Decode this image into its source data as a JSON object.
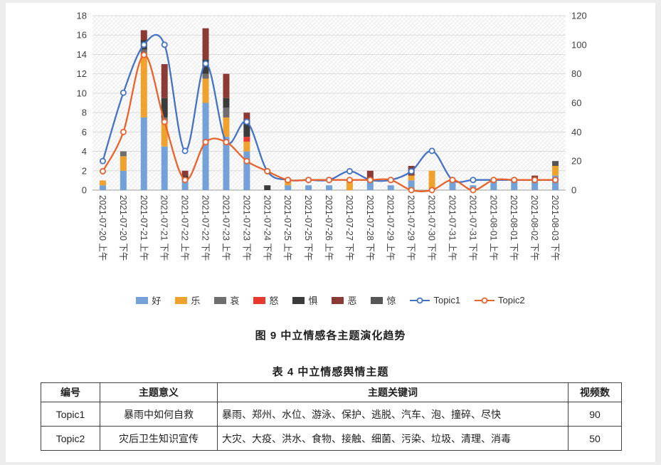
{
  "figure_caption": "图 9  中立情感各主题演化趋势",
  "table_caption": "表 4  中立情感舆情主题",
  "chart_data": {
    "type": "combo-stacked-bar-line",
    "title": "中立情感各主题演化趋势",
    "categories": [
      "2021-07-20 上午",
      "2021-07-20 下午",
      "2021-07-21 上午",
      "2021-07-21 下午",
      "2021-07-22 上午",
      "2021-07-22 下午",
      "2021-07-23 上午",
      "2021-07-23 下午",
      "2021-07-24 下午",
      "2021-07-25 上午",
      "2021-07-25 下午",
      "2021-07-26 上午",
      "2021-07-27 下午",
      "2021-07-28 下午",
      "2021-07-29 上午",
      "2021-07-29 下午",
      "2021-07-30 下午",
      "2021-07-31 上午",
      "2021-07-31 下午",
      "2021-08-01 上午",
      "2021-08-01 下午",
      "2021-08-02 下午",
      "2021-08-03 下午"
    ],
    "bar_series": [
      {
        "name": "好",
        "color": "#74A2D8",
        "values": [
          0.5,
          2,
          7.5,
          4.5,
          1,
          9,
          5.5,
          4,
          0,
          0.5,
          0.5,
          0.5,
          0,
          1,
          0.5,
          1,
          0,
          1,
          0.5,
          1,
          1,
          1,
          1.5
        ]
      },
      {
        "name": "乐",
        "color": "#F0A22E",
        "values": [
          0.5,
          1.5,
          6.5,
          2.5,
          0,
          2.5,
          2,
          1,
          0,
          0.5,
          0,
          0,
          1,
          0,
          0,
          0.5,
          2,
          0,
          0,
          0,
          0,
          0,
          1
        ]
      },
      {
        "name": "哀",
        "color": "#6E6E6E",
        "values": [
          0,
          0.5,
          0.5,
          0.5,
          0,
          0.5,
          1,
          0,
          0,
          0,
          0,
          0,
          0,
          0,
          0,
          0,
          0,
          0,
          0,
          0,
          0,
          0,
          0
        ]
      },
      {
        "name": "怒",
        "color": "#E8392E",
        "values": [
          0,
          0,
          0,
          0,
          0,
          0,
          0,
          0.5,
          0,
          0,
          0,
          0,
          0,
          0,
          0,
          0,
          0,
          0,
          0,
          0,
          0,
          0,
          0
        ]
      },
      {
        "name": "惧",
        "color": "#3B3B3B",
        "values": [
          0,
          0,
          1,
          2,
          0.5,
          1.5,
          1,
          1.5,
          0.5,
          0,
          0,
          0,
          0,
          0,
          0,
          0,
          0,
          0,
          0,
          0,
          0,
          0,
          0
        ]
      },
      {
        "name": "恶",
        "color": "#8C3A35",
        "values": [
          0,
          0,
          1,
          3.5,
          0.5,
          3.2,
          2.5,
          1,
          0,
          0,
          0,
          0,
          0,
          1,
          0,
          1,
          0,
          0,
          0,
          0,
          0,
          0.5,
          0
        ]
      },
      {
        "name": "惊",
        "color": "#565656",
        "values": [
          0,
          0,
          0,
          0,
          0,
          0,
          0,
          0,
          0,
          0,
          0,
          0,
          0,
          0,
          0,
          0,
          0,
          0,
          0,
          0,
          0,
          0,
          0.5
        ]
      }
    ],
    "line_series": [
      {
        "name": "Topic1",
        "color": "#4472C4",
        "axis": "right",
        "values": [
          20,
          67,
          100,
          100,
          27,
          87,
          33,
          47,
          13,
          7,
          7,
          7,
          13,
          7,
          7,
          13,
          27,
          7,
          7,
          7,
          7,
          7,
          7
        ]
      },
      {
        "name": "Topic2",
        "color": "#E8632C",
        "axis": "right",
        "values": [
          13,
          40,
          93,
          47,
          7,
          33,
          33,
          20,
          13,
          7,
          7,
          7,
          7,
          7,
          7,
          0,
          0,
          7,
          0,
          7,
          7,
          7,
          7
        ]
      }
    ],
    "left_axis": {
      "min": 0,
      "max": 18,
      "step": 2
    },
    "right_axis": {
      "min": 0,
      "max": 120,
      "step": 20
    },
    "grid": true,
    "legend_position": "bottom",
    "plot_background": "diagonal-hatch"
  },
  "table": {
    "headers": [
      "编号",
      "主题意义",
      "主题关键词",
      "视频数"
    ],
    "rows": [
      {
        "id": "Topic1",
        "meaning": "暴雨中如何自救",
        "keywords": "暴雨、郑州、水位、游泳、保护、逃脱、汽车、泡、撞碎、尽快",
        "count": "90"
      },
      {
        "id": "Topic2",
        "meaning": "灾后卫生知识宣传",
        "keywords": "大灾、大疫、洪水、食物、接触、细菌、污染、垃圾、清理、消毒",
        "count": "50"
      }
    ]
  }
}
